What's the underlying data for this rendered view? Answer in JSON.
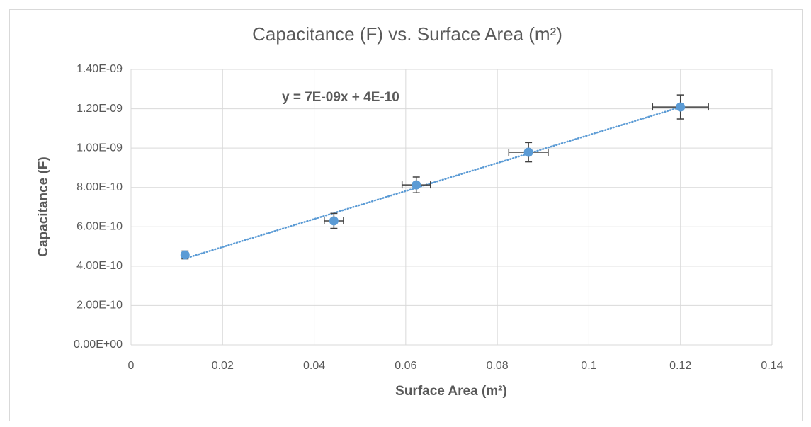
{
  "chart_data": {
    "type": "scatter",
    "title": "Capacitance (F) vs. Surface Area (m²)",
    "x_label": "Surface Area (m²)",
    "y_label": "Capacitance (F)",
    "equation": "y = 7E-09x + 4E-10",
    "trendline": "linear",
    "x": [
      0.0118,
      0.0443,
      0.0623,
      0.0868,
      0.12
    ],
    "series": [
      {
        "color": "#5b9bd5",
        "values": [
          4.57e-10,
          6.3e-10,
          8.13e-10,
          9.79e-10,
          1.209e-09
        ],
        "y_error": [
          2e-11,
          3.8e-11,
          4e-11,
          4.9e-11,
          6.1e-11
        ],
        "x_error": [
          0.0005,
          0.0021,
          0.0031,
          0.0043,
          0.0061
        ]
      }
    ],
    "xlim": [
      0,
      0.14
    ],
    "xticks": [
      0,
      0.02,
      0.04,
      0.06,
      0.08,
      0.1,
      0.12,
      0.14
    ],
    "ylim": [
      0,
      1.4e-09
    ],
    "yticks": [
      {
        "value": 0,
        "label": "0.00E+00"
      },
      {
        "value": 2e-10,
        "label": "2.00E-10"
      },
      {
        "value": 4e-10,
        "label": "4.00E-10"
      },
      {
        "value": 6e-10,
        "label": "6.00E-10"
      },
      {
        "value": 8e-10,
        "label": "8.00E-10"
      },
      {
        "value": 1e-09,
        "label": "1.00E-09"
      },
      {
        "value": 1.2e-09,
        "label": "1.20E-09"
      },
      {
        "value": 1.4e-09,
        "label": "1.40E-09"
      }
    ],
    "grid": true
  }
}
